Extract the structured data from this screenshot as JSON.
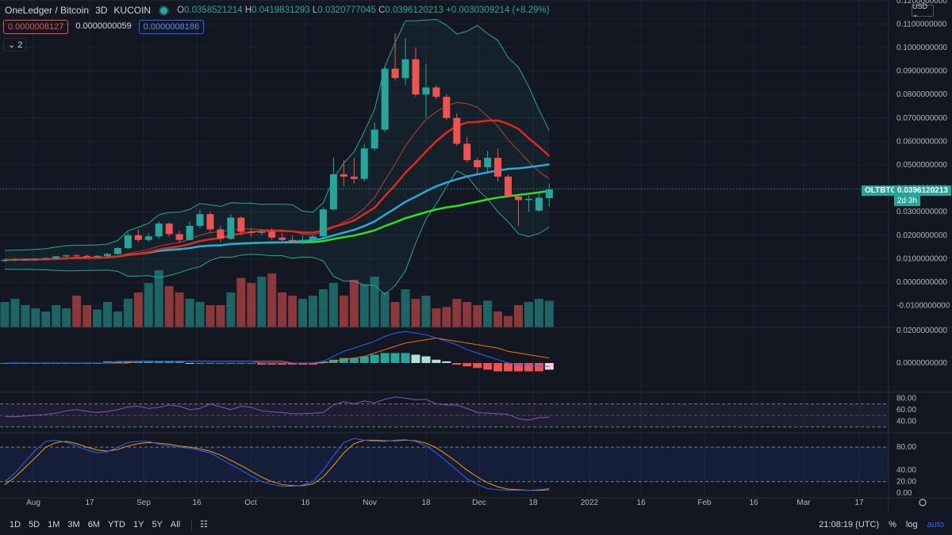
{
  "header": {
    "title": "OneLedger / Bitcoin",
    "interval": "3D",
    "exchange": "KUCOIN",
    "open_label": "O",
    "open": "0.0358521214",
    "high_label": "H",
    "high": "0.0419831293",
    "low_label": "L",
    "low": "0.0320777045",
    "close_label": "C",
    "close": "0.0396120213",
    "change": "+0.0030309214 (+8.29%)"
  },
  "indicator_values": [
    "0.0000008127",
    "0.0000000059",
    "0.0000008186"
  ],
  "collapse_label": "⌄ 2",
  "currency": "USD ⌄",
  "price_tag": {
    "symbol": "OLTBTC",
    "price": "0.0396120213",
    "countdown": "2d 3h"
  },
  "bottom_bar": {
    "ranges": [
      "1D",
      "5D",
      "1M",
      "3M",
      "6M",
      "YTD",
      "1Y",
      "5Y",
      "All"
    ],
    "time": "21:08:19 (UTC)",
    "percent": "%",
    "log": "log",
    "auto": "auto"
  },
  "colors": {
    "bg": "#131722",
    "up": "#26a69a",
    "down": "#ef5350",
    "grid": "#1f2330",
    "text": "#b2b5be",
    "ma_red": "#e0281f",
    "ma_cyan": "#29a9d9",
    "ma_green": "#2ee01f",
    "bb": "#26a69a",
    "rsi": "#7e57c2",
    "stoch_k": "#2962ff",
    "stoch_d": "#ff9800"
  },
  "chart_data": [
    {
      "type": "candlestick",
      "x_ticks": [
        "Aug",
        "17",
        "Sep",
        "16",
        "Oct",
        "16",
        "Nov",
        "18",
        "Dec",
        "18",
        "2022",
        "16",
        "Feb",
        "16",
        "Mar",
        "17"
      ],
      "y_ticks": [
        "0.1200000000",
        "0.1100000000",
        "0.1000000000",
        "0.0900000000",
        "0.0800000000",
        "0.0700000000",
        "0.0600000000",
        "0.0500000000",
        "0.0400000000",
        "0.0300000000",
        "0.0200000000",
        "0.0100000000",
        "0.0000000000",
        "-0.0100000000"
      ],
      "ylim": [
        -0.013,
        0.12
      ],
      "candles": [
        [
          0.009,
          0.01,
          0.0085,
          0.0095
        ],
        [
          0.0095,
          0.0102,
          0.009,
          0.0096
        ],
        [
          0.0096,
          0.01,
          0.0092,
          0.0097
        ],
        [
          0.0097,
          0.0103,
          0.0094,
          0.0099
        ],
        [
          0.0099,
          0.0106,
          0.0095,
          0.0102
        ],
        [
          0.0102,
          0.0112,
          0.0098,
          0.011
        ],
        [
          0.011,
          0.0118,
          0.0106,
          0.0114
        ],
        [
          0.0114,
          0.012,
          0.0108,
          0.0112
        ],
        [
          0.0112,
          0.0118,
          0.0105,
          0.0108
        ],
        [
          0.0108,
          0.0115,
          0.0103,
          0.0112
        ],
        [
          0.0112,
          0.0125,
          0.0108,
          0.012
        ],
        [
          0.012,
          0.015,
          0.0118,
          0.0145
        ],
        [
          0.0145,
          0.021,
          0.014,
          0.02
        ],
        [
          0.02,
          0.0225,
          0.017,
          0.018
        ],
        [
          0.018,
          0.021,
          0.0172,
          0.0195
        ],
        [
          0.0195,
          0.026,
          0.0185,
          0.025
        ],
        [
          0.025,
          0.0255,
          0.0195,
          0.0205
        ],
        [
          0.0205,
          0.022,
          0.017,
          0.018
        ],
        [
          0.018,
          0.026,
          0.0178,
          0.024
        ],
        [
          0.024,
          0.031,
          0.023,
          0.029
        ],
        [
          0.029,
          0.03,
          0.021,
          0.0225
        ],
        [
          0.0225,
          0.024,
          0.017,
          0.0185
        ],
        [
          0.0185,
          0.029,
          0.018,
          0.0275
        ],
        [
          0.0275,
          0.028,
          0.02,
          0.0215
        ],
        [
          0.0215,
          0.023,
          0.0195,
          0.021
        ],
        [
          0.021,
          0.0225,
          0.02,
          0.0215
        ],
        [
          0.0215,
          0.023,
          0.018,
          0.019
        ],
        [
          0.019,
          0.021,
          0.017,
          0.018
        ],
        [
          0.018,
          0.02,
          0.0165,
          0.0175
        ],
        [
          0.0175,
          0.02,
          0.016,
          0.018
        ],
        [
          0.018,
          0.02,
          0.017,
          0.0195
        ],
        [
          0.0195,
          0.032,
          0.019,
          0.031
        ],
        [
          0.031,
          0.053,
          0.0305,
          0.046
        ],
        [
          0.046,
          0.052,
          0.041,
          0.045
        ],
        [
          0.045,
          0.053,
          0.042,
          0.044
        ],
        [
          0.044,
          0.059,
          0.043,
          0.057
        ],
        [
          0.057,
          0.068,
          0.056,
          0.065
        ],
        [
          0.065,
          0.092,
          0.064,
          0.091
        ],
        [
          0.091,
          0.106,
          0.086,
          0.087
        ],
        [
          0.087,
          0.104,
          0.084,
          0.095
        ],
        [
          0.095,
          0.1,
          0.079,
          0.08
        ],
        [
          0.08,
          0.093,
          0.07,
          0.083
        ],
        [
          0.083,
          0.084,
          0.078,
          0.079
        ],
        [
          0.079,
          0.08,
          0.069,
          0.07
        ],
        [
          0.07,
          0.072,
          0.058,
          0.059
        ],
        [
          0.059,
          0.062,
          0.051,
          0.052
        ],
        [
          0.052,
          0.053,
          0.046,
          0.049
        ],
        [
          0.049,
          0.056,
          0.047,
          0.053
        ],
        [
          0.053,
          0.057,
          0.043,
          0.045
        ],
        [
          0.045,
          0.046,
          0.036,
          0.0365
        ],
        [
          0.0365,
          0.037,
          0.024,
          0.035
        ],
        [
          0.035,
          0.037,
          0.03,
          0.0355
        ],
        [
          0.0305,
          0.038,
          0.03,
          0.036
        ],
        [
          0.0358,
          0.042,
          0.0321,
          0.0396
        ]
      ],
      "volume": [
        0.4,
        0.45,
        0.35,
        0.3,
        0.25,
        0.35,
        0.3,
        0.5,
        0.35,
        0.28,
        0.4,
        0.25,
        0.45,
        0.55,
        0.7,
        0.9,
        0.65,
        0.55,
        0.45,
        0.4,
        0.35,
        0.35,
        0.55,
        0.78,
        0.7,
        0.8,
        0.85,
        0.55,
        0.5,
        0.45,
        0.5,
        0.6,
        0.7,
        0.5,
        0.75,
        0.68,
        0.8,
        0.55,
        0.4,
        0.6,
        0.45,
        0.5,
        0.3,
        0.32,
        0.45,
        0.4,
        0.35,
        0.42,
        0.25,
        0.18,
        0.35,
        0.4,
        0.45,
        0.42
      ]
    },
    {
      "type": "line",
      "name": "",
      "y_ticks": [
        "0.0200000000",
        "0.0000000000"
      ],
      "macd": [
        0.0,
        0.0,
        0.0,
        0.0,
        0.0,
        0.0,
        0.0,
        0.0,
        0.0,
        0.0,
        0.0,
        0.001,
        0.001,
        0.001,
        0.001,
        0.001,
        0.001,
        0.001,
        0.001,
        0.001,
        0.001,
        0.001,
        0.001,
        0.001,
        0.001,
        0.0,
        0.0,
        0.0,
        0.0,
        0.0,
        0.0,
        0.001,
        0.004,
        0.007,
        0.009,
        0.011,
        0.013,
        0.016,
        0.018,
        0.019,
        0.018,
        0.017,
        0.015,
        0.013,
        0.011,
        0.008,
        0.006,
        0.004,
        0.002,
        0.0,
        -0.001,
        -0.001,
        -0.002,
        -0.002
      ],
      "signal": [
        0.0,
        0.0,
        0.0,
        0.0,
        0.0,
        0.0,
        0.0,
        0.0,
        0.0,
        0.0,
        0.0,
        0.0,
        0.0,
        0.001,
        0.001,
        0.001,
        0.001,
        0.001,
        0.001,
        0.001,
        0.001,
        0.001,
        0.001,
        0.001,
        0.001,
        0.001,
        0.001,
        0.001,
        0.0,
        0.0,
        0.0,
        0.0,
        0.001,
        0.002,
        0.003,
        0.004,
        0.006,
        0.008,
        0.01,
        0.012,
        0.013,
        0.014,
        0.015,
        0.014,
        0.013,
        0.012,
        0.011,
        0.01,
        0.009,
        0.007,
        0.006,
        0.005,
        0.004,
        0.003
      ],
      "histogram": [
        0.0,
        0.0,
        0.0,
        0.0,
        0.0,
        0.0,
        0.0,
        0.0,
        0.0,
        0.0,
        0.001,
        0.001,
        0.001,
        0.001,
        0.001,
        0.001,
        0.001,
        0.001,
        0.0,
        0.0,
        0.0,
        0.0,
        0.0,
        0.0,
        0.0,
        -0.001,
        -0.001,
        -0.001,
        -0.001,
        -0.001,
        -0.001,
        0.001,
        0.002,
        0.003,
        0.003,
        0.004,
        0.005,
        0.006,
        0.006,
        0.006,
        0.005,
        0.004,
        0.002,
        0.001,
        -0.001,
        -0.002,
        -0.003,
        -0.004,
        -0.005,
        -0.005,
        -0.005,
        -0.005,
        -0.005,
        -0.004
      ]
    },
    {
      "type": "line",
      "y_ticks": [
        "80.00",
        "60.00",
        "40.00"
      ],
      "ylim": [
        20,
        90
      ],
      "rsi": [
        48,
        48,
        49,
        50,
        52,
        54,
        58,
        60,
        57,
        55,
        57,
        60,
        65,
        66,
        62,
        64,
        68,
        66,
        60,
        62,
        70,
        65,
        60,
        66,
        64,
        58,
        56,
        55,
        53,
        53,
        54,
        55,
        68,
        74,
        70,
        75,
        72,
        78,
        82,
        80,
        77,
        78,
        70,
        68,
        68,
        62,
        55,
        54,
        53,
        52,
        44,
        42,
        46,
        47
      ]
    },
    {
      "type": "line",
      "y_ticks": [
        "80.00",
        "40.00",
        "20.00",
        "0.00"
      ],
      "ylim": [
        -8,
        105
      ],
      "k": [
        20,
        35,
        55,
        75,
        90,
        92,
        88,
        82,
        75,
        70,
        72,
        80,
        88,
        90,
        90,
        85,
        82,
        80,
        78,
        74,
        70,
        60,
        50,
        40,
        30,
        20,
        15,
        12,
        12,
        14,
        20,
        40,
        65,
        88,
        95,
        92,
        90,
        90,
        92,
        93,
        90,
        82,
        70,
        55,
        40,
        25,
        15,
        8,
        6,
        5,
        5,
        5,
        6,
        8
      ],
      "d": [
        15,
        28,
        45,
        62,
        80,
        88,
        90,
        86,
        80,
        75,
        73,
        76,
        82,
        86,
        88,
        87,
        85,
        82,
        80,
        77,
        73,
        66,
        57,
        48,
        38,
        28,
        20,
        15,
        13,
        13,
        16,
        28,
        48,
        70,
        86,
        92,
        92,
        91,
        91,
        92,
        91,
        87,
        79,
        67,
        54,
        40,
        28,
        18,
        11,
        7,
        6,
        5,
        5,
        6
      ]
    }
  ]
}
